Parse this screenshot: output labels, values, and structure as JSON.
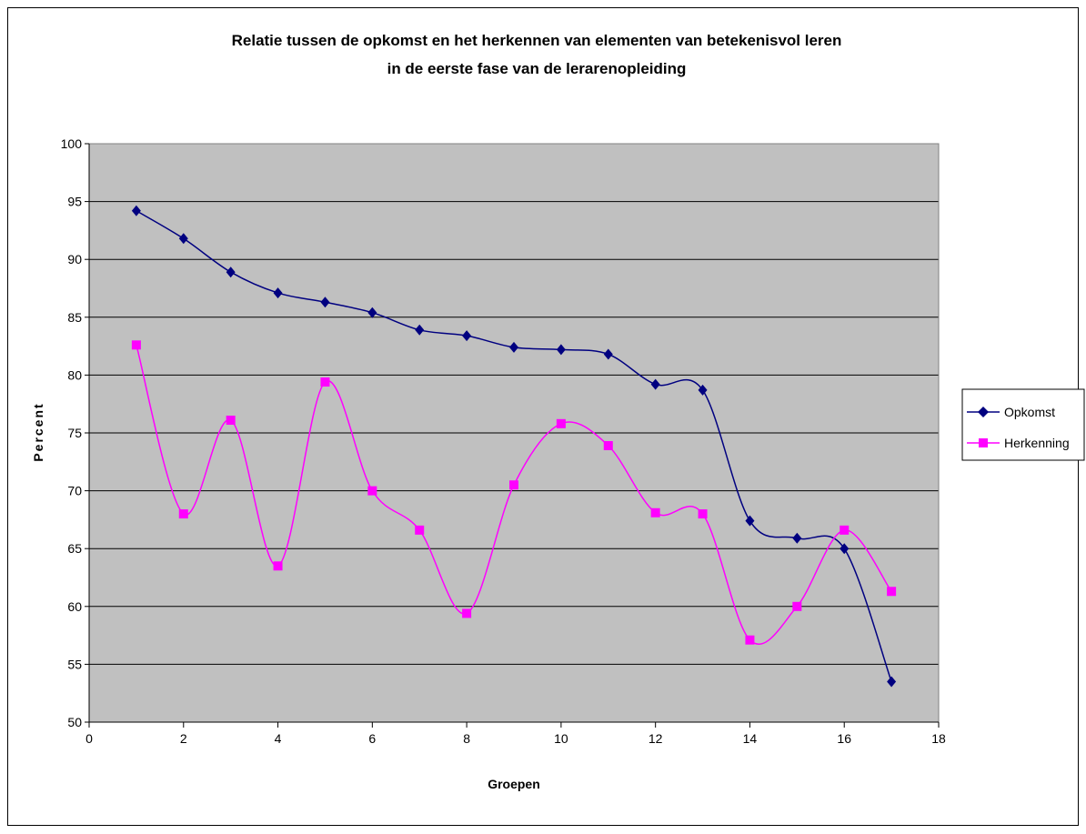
{
  "chart_data": {
    "type": "line",
    "title": "Relatie tussen de opkomst en het herkennen van elementen van betekenisvol leren",
    "subtitle": "in de eerste fase van de lerarenopleiding",
    "xlabel": "Groepen",
    "ylabel": "Percent",
    "xlim": [
      0,
      18
    ],
    "ylim": [
      50,
      100
    ],
    "xticks": [
      0,
      2,
      4,
      6,
      8,
      10,
      12,
      14,
      16,
      18
    ],
    "yticks": [
      50,
      55,
      60,
      65,
      70,
      75,
      80,
      85,
      90,
      95,
      100
    ],
    "grid": "horizontal",
    "legend_position": "right",
    "plot_background": "#c0c0c0",
    "series": [
      {
        "name": "Opkomst",
        "color": "#000080",
        "marker": "diamond",
        "x": [
          1,
          2,
          3,
          4,
          5,
          6,
          7,
          8,
          9,
          10,
          11,
          12,
          13,
          14,
          15,
          16,
          17
        ],
        "values": [
          94.2,
          91.8,
          88.9,
          87.1,
          86.3,
          85.4,
          83.9,
          83.4,
          82.4,
          82.2,
          81.8,
          79.2,
          78.7,
          67.4,
          65.9,
          65.0,
          53.5
        ]
      },
      {
        "name": "Herkenning",
        "color": "#ff00ff",
        "marker": "square",
        "x": [
          1,
          2,
          3,
          4,
          5,
          6,
          7,
          8,
          9,
          10,
          11,
          12,
          13,
          14,
          15,
          16,
          17
        ],
        "values": [
          82.6,
          68.0,
          76.1,
          63.5,
          79.4,
          70.0,
          66.6,
          59.4,
          70.5,
          75.8,
          73.9,
          68.1,
          68.0,
          57.1,
          60.0,
          66.6,
          61.3
        ]
      }
    ]
  }
}
